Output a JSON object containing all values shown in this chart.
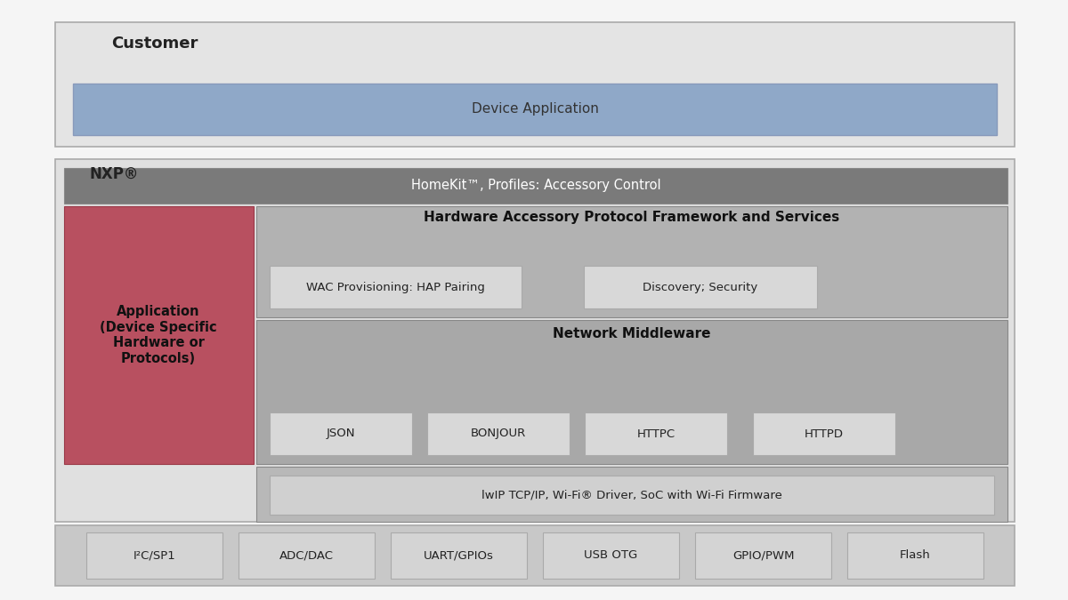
{
  "fig_bg": "#f5f5f5",
  "title_customer": "Customer",
  "title_nxp": "NXP®",
  "device_app_text": "Device Application",
  "device_app_color": "#8fa8c8",
  "homekit_text": "HomeKit™, Profiles: Accessory Control",
  "homekit_color": "#7a7a7a",
  "hapf_text": "Hardware Accessory Protocol Framework and Services",
  "hapf_color": "#b2b2b2",
  "wac_text": "WAC Provisioning: HAP Pairing",
  "discovery_text": "Discovery; Security",
  "inner_box_color": "#d8d8d8",
  "net_mid_text": "Network Middleware",
  "net_mid_color": "#a8a8a8",
  "json_text": "JSON",
  "bonjour_text": "BONJOUR",
  "httpc_text": "HTTPC",
  "httpd_text": "HTTPD",
  "lwip_text": "lwIP TCP/IP, Wi-Fi® Driver, SoC with Wi-Fi Firmware",
  "lwip_section_color": "#b8b8b8",
  "lwip_box_color": "#d0d0d0",
  "app_text": "Application\n(Device Specific\nHardware or\nProtocols)",
  "app_color": "#b85060",
  "customer_bg": "#e4e4e4",
  "nxp_bg": "#e0e0e0",
  "bottom_bg": "#c8c8c8",
  "bottom_box_color": "#d4d4d4",
  "bottom_items": [
    "I²C/SP1",
    "ADC/DAC",
    "UART/GPIOs",
    "USB OTG",
    "GPIO/PWM",
    "Flash"
  ],
  "border_color": "#aaaaaa",
  "dark_border": "#888888"
}
